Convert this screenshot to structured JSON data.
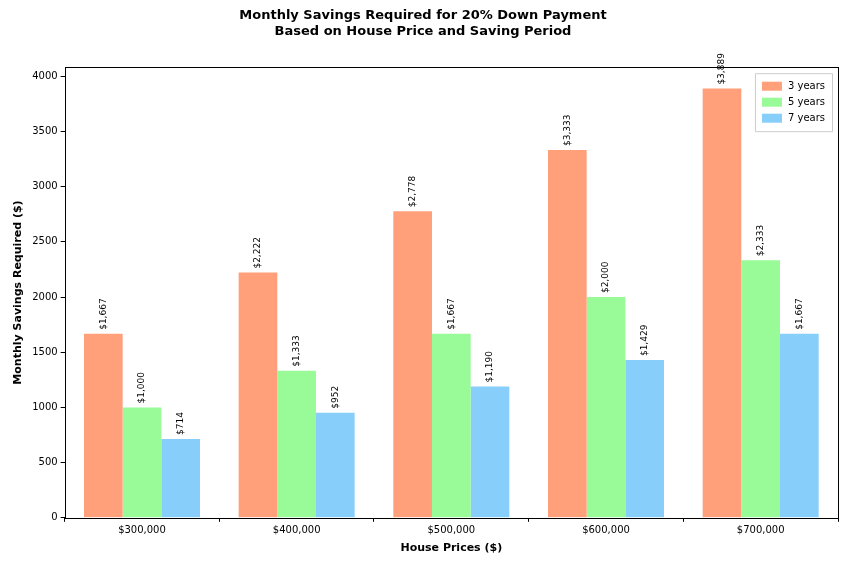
{
  "chart_data": {
    "type": "bar",
    "title": [
      "Monthly Savings Required for 20% Down Payment",
      "Based on House Price and Saving Period"
    ],
    "x_label": "House Prices ($)",
    "y_label": "Monthly Savings Required ($)",
    "categories": [
      "$300,000",
      "$400,000",
      "$500,000",
      "$600,000",
      "$700,000"
    ],
    "series": [
      {
        "name": "3 years",
        "color": "#ffa07a",
        "values": [
          1667,
          2222,
          2778,
          3333,
          3889
        ],
        "value_labels": [
          "$1,667",
          "$2,222",
          "$2,778",
          "$3,333",
          "$3,889"
        ]
      },
      {
        "name": "5 years",
        "color": "#98fb98",
        "values": [
          1000,
          1333,
          1667,
          2000,
          2333
        ],
        "value_labels": [
          "$1,000",
          "$1,333",
          "$1,667",
          "$2,000",
          "$2,333"
        ]
      },
      {
        "name": "7 years",
        "color": "#87cefa",
        "values": [
          714,
          952,
          1190,
          1429,
          1667
        ],
        "value_labels": [
          "$714",
          "$952",
          "$1,190",
          "$1,429",
          "$1,667"
        ]
      }
    ],
    "ylim": [
      0,
      4083
    ],
    "yticks": [
      0,
      500,
      1000,
      1500,
      2000,
      2500,
      3000,
      3500,
      4000
    ],
    "grid": false,
    "legend": "upper right",
    "data_labels": true
  }
}
